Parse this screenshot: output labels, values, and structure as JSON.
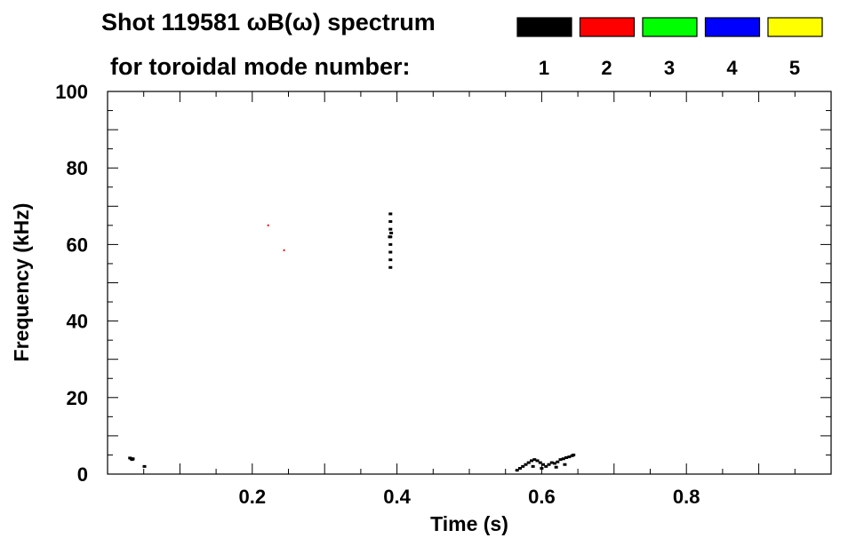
{
  "header": {
    "title": "Shot 119581 ωB(ω) spectrum",
    "subtitle": "for toroidal mode number:"
  },
  "legend": {
    "placement": "top-right",
    "items": [
      {
        "label": "1",
        "color": "#000000"
      },
      {
        "label": "2",
        "color": "#ff0000"
      },
      {
        "label": "3",
        "color": "#00ff00"
      },
      {
        "label": "4",
        "color": "#0000ff"
      },
      {
        "label": "5",
        "color": "#ffff00"
      }
    ]
  },
  "chart_data": {
    "type": "heatmap",
    "title": "Shot 119581 ωB(ω) spectrum",
    "xlabel": "Time (s)",
    "ylabel": "Frequency (kHz)",
    "xlim": [
      0.0,
      1.0
    ],
    "ylim": [
      0,
      100
    ],
    "xticks": [
      0.2,
      0.4,
      0.6,
      0.8
    ],
    "xtick_labels": [
      "0.2",
      "0.4",
      "0.6",
      "0.8"
    ],
    "yticks": [
      0,
      20,
      40,
      60,
      80,
      100
    ],
    "ytick_labels": [
      "0",
      "20",
      "40",
      "60",
      "80",
      "100"
    ],
    "x_minor_step": 0.05,
    "y_minor_step": 5,
    "grid": false,
    "series": [
      {
        "name": "1",
        "color": "#000000",
        "points": [
          [
            0.031,
            4.2
          ],
          [
            0.033,
            4.0
          ],
          [
            0.034,
            3.8
          ],
          [
            0.035,
            4.0
          ],
          [
            0.051,
            2.0
          ],
          [
            0.391,
            58.0
          ],
          [
            0.391,
            60.0
          ],
          [
            0.391,
            62.0
          ],
          [
            0.391,
            64.0
          ],
          [
            0.391,
            66.0
          ],
          [
            0.391,
            68.0
          ],
          [
            0.39,
            62.0
          ],
          [
            0.392,
            63.0
          ],
          [
            0.391,
            56.0
          ],
          [
            0.391,
            54.0
          ],
          [
            0.566,
            1.0
          ],
          [
            0.57,
            1.5
          ],
          [
            0.574,
            2.0
          ],
          [
            0.578,
            2.5
          ],
          [
            0.582,
            3.0
          ],
          [
            0.586,
            3.5
          ],
          [
            0.59,
            3.8
          ],
          [
            0.594,
            3.5
          ],
          [
            0.598,
            3.0
          ],
          [
            0.602,
            2.5
          ],
          [
            0.606,
            2.0
          ],
          [
            0.61,
            2.5
          ],
          [
            0.614,
            3.0
          ],
          [
            0.618,
            2.8
          ],
          [
            0.622,
            3.2
          ],
          [
            0.626,
            3.8
          ],
          [
            0.63,
            4.0
          ],
          [
            0.634,
            4.3
          ],
          [
            0.638,
            4.5
          ],
          [
            0.642,
            4.8
          ],
          [
            0.588,
            2.0
          ],
          [
            0.6,
            1.5
          ],
          [
            0.62,
            1.8
          ],
          [
            0.632,
            2.5
          ],
          [
            0.644,
            5.0
          ]
        ]
      },
      {
        "name": "2",
        "color": "#ff0000",
        "points": [
          [
            0.222,
            65.0
          ],
          [
            0.244,
            58.5
          ]
        ]
      }
    ]
  }
}
